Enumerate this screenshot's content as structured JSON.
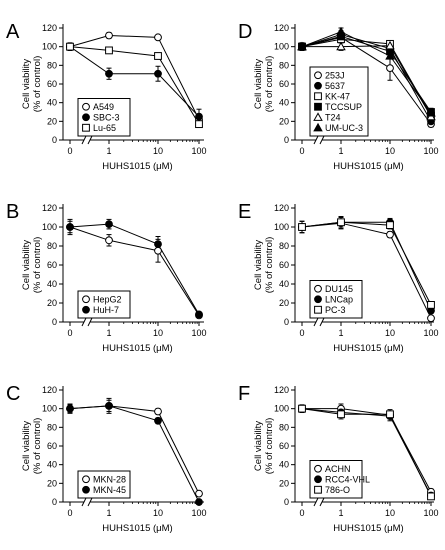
{
  "figure": {
    "panels": [
      "A",
      "B",
      "C",
      "D",
      "E",
      "F"
    ]
  },
  "chart_data": [
    {
      "panel": "A",
      "type": "line",
      "x": [
        0,
        1,
        10,
        100
      ],
      "xticks": [
        "0",
        "1",
        "10",
        "100"
      ],
      "xscale": "log with 0 break",
      "xlabel": "HUHS1015 (μM)",
      "ylabel": [
        "Cell viability",
        "(% of control)"
      ],
      "yticks": [
        0,
        20,
        40,
        60,
        80,
        100,
        120
      ],
      "ylim": [
        0,
        120
      ],
      "legend_position": "bottom-left",
      "series": [
        {
          "name": "A549",
          "marker": "open-circle",
          "values": [
            100,
            112,
            110,
            22
          ],
          "errors": [
            4,
            3,
            2,
            4
          ]
        },
        {
          "name": "SBC-3",
          "marker": "filled-circle",
          "values": [
            100,
            71,
            71,
            25
          ],
          "errors": [
            4,
            6,
            8,
            8
          ]
        },
        {
          "name": "Lu-65",
          "marker": "open-square",
          "values": [
            100,
            96,
            90,
            17
          ],
          "errors": [
            4,
            3,
            2,
            3
          ]
        }
      ]
    },
    {
      "panel": "B",
      "type": "line",
      "x": [
        0,
        1,
        10,
        100
      ],
      "xticks": [
        "0",
        "1",
        "10",
        "100"
      ],
      "xscale": "log with 0 break",
      "xlabel": "HUHS1015 (μM)",
      "ylabel": [
        "Cell viability",
        "(% of control)"
      ],
      "yticks": [
        0,
        20,
        40,
        60,
        80,
        100,
        120
      ],
      "ylim": [
        0,
        120
      ],
      "legend_position": "bottom-left",
      "series": [
        {
          "name": "HepG2",
          "marker": "open-circle",
          "values": [
            100,
            86,
            75,
            7
          ],
          "errors": [
            8,
            6,
            12,
            2
          ]
        },
        {
          "name": "HuH-7",
          "marker": "filled-circle",
          "values": [
            100,
            103,
            82,
            8
          ],
          "errors": [
            6,
            5,
            8,
            2
          ]
        }
      ]
    },
    {
      "panel": "C",
      "type": "line",
      "x": [
        0,
        1,
        10,
        100
      ],
      "xticks": [
        "0",
        "1",
        "10",
        "100"
      ],
      "xscale": "log with 0 break",
      "xlabel": "HUHS1015 (μM)",
      "ylabel": [
        "Cell viability",
        "(% of control)"
      ],
      "yticks": [
        0,
        20,
        40,
        60,
        80,
        100,
        120
      ],
      "ylim": [
        0,
        120
      ],
      "legend_position": "bottom-left",
      "series": [
        {
          "name": "MKN-28",
          "marker": "open-circle",
          "values": [
            100,
            103,
            97,
            9
          ],
          "errors": [
            4,
            6,
            3,
            2
          ]
        },
        {
          "name": "MKN-45",
          "marker": "filled-circle",
          "values": [
            100,
            103,
            87,
            0
          ],
          "errors": [
            5,
            8,
            3,
            2
          ]
        }
      ]
    },
    {
      "panel": "D",
      "type": "line",
      "x": [
        0,
        1,
        10,
        100
      ],
      "xticks": [
        "0",
        "1",
        "10",
        "100"
      ],
      "xscale": "log with 0 break",
      "xlabel": "HUHS1015 (μM)",
      "ylabel": [
        "Cell viability",
        "(% of control)"
      ],
      "yticks": [
        0,
        20,
        40,
        60,
        80,
        100,
        120
      ],
      "ylim": [
        0,
        120
      ],
      "legend_position": "bottom-left",
      "series": [
        {
          "name": "253J",
          "marker": "open-circle",
          "values": [
            100,
            110,
            77,
            17
          ],
          "errors": [
            4,
            5,
            13,
            3
          ]
        },
        {
          "name": "5637",
          "marker": "filled-circle",
          "values": [
            100,
            113,
            98,
            20
          ],
          "errors": [
            4,
            4,
            3,
            3
          ]
        },
        {
          "name": "KK-47",
          "marker": "open-square",
          "values": [
            100,
            108,
            103,
            26
          ],
          "errors": [
            4,
            4,
            3,
            3
          ]
        },
        {
          "name": "TCCSUP",
          "marker": "filled-square",
          "values": [
            100,
            111,
            95,
            30
          ],
          "errors": [
            4,
            4,
            3,
            4
          ]
        },
        {
          "name": "T24",
          "marker": "open-triangle",
          "values": [
            100,
            100,
            101,
            25
          ],
          "errors": [
            4,
            4,
            3,
            3
          ]
        },
        {
          "name": "UM-UC-3",
          "marker": "filled-triangle",
          "values": [
            100,
            116,
            90,
            29
          ],
          "errors": [
            4,
            4,
            3,
            4
          ]
        }
      ]
    },
    {
      "panel": "E",
      "type": "line",
      "x": [
        0,
        1,
        10,
        100
      ],
      "xticks": [
        "0",
        "1",
        "10",
        "100"
      ],
      "xscale": "log with 0 break",
      "xlabel": "HUHS1015 (μM)",
      "ylabel": [
        "Cell viability",
        "(% of control)"
      ],
      "yticks": [
        0,
        20,
        40,
        60,
        80,
        100,
        120
      ],
      "ylim": [
        0,
        120
      ],
      "legend_position": "bottom-left",
      "series": [
        {
          "name": "DU145",
          "marker": "open-circle",
          "values": [
            100,
            104,
            92,
            4
          ],
          "errors": [
            6,
            6,
            3,
            2
          ]
        },
        {
          "name": "LNCap",
          "marker": "filled-circle",
          "values": [
            100,
            105,
            105,
            12
          ],
          "errors": [
            6,
            6,
            4,
            3
          ]
        },
        {
          "name": "PC-3",
          "marker": "open-square",
          "values": [
            100,
            105,
            102,
            18
          ],
          "errors": [
            6,
            6,
            4,
            3
          ]
        }
      ]
    },
    {
      "panel": "F",
      "type": "line",
      "x": [
        0,
        1,
        10,
        100
      ],
      "xticks": [
        "0",
        "1",
        "10",
        "100"
      ],
      "xscale": "log with 0 break",
      "xlabel": "HUHS1015 (μM)",
      "ylabel": [
        "Cell viability",
        "(% of control)"
      ],
      "yticks": [
        0,
        20,
        40,
        60,
        80,
        100,
        120
      ],
      "ylim": [
        0,
        120
      ],
      "legend_position": "bottom-left",
      "series": [
        {
          "name": "ACHN",
          "marker": "open-circle",
          "values": [
            100,
            100,
            93,
            11
          ],
          "errors": [
            4,
            5,
            4,
            3
          ]
        },
        {
          "name": "RCC4-VHL",
          "marker": "filled-circle",
          "values": [
            100,
            96,
            92,
            7
          ],
          "errors": [
            4,
            5,
            5,
            2
          ]
        },
        {
          "name": "786-O",
          "marker": "open-square",
          "values": [
            100,
            94,
            94,
            6
          ],
          "errors": [
            4,
            5,
            5,
            2
          ]
        }
      ]
    }
  ]
}
